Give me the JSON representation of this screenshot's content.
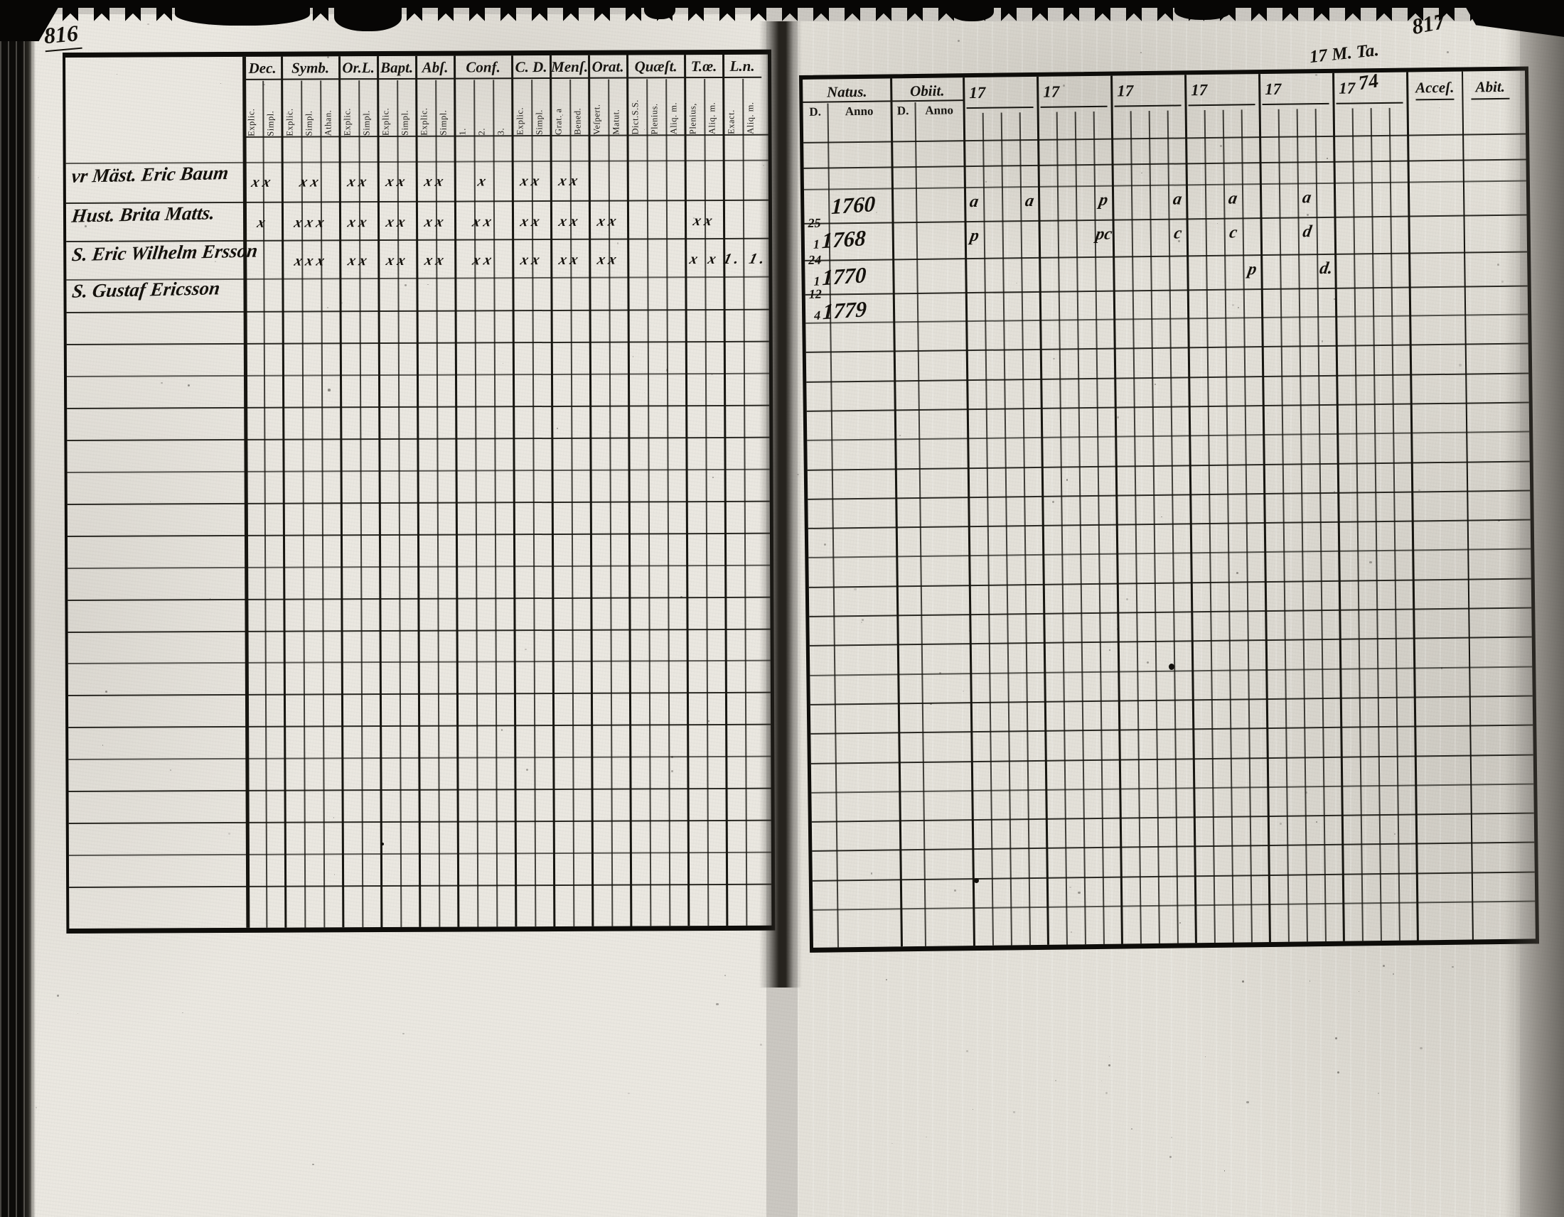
{
  "scan": {
    "left_page_number": "816",
    "right_page_number": "817",
    "top_annotation": "17 M. Ta.",
    "ink_color": "#14110c",
    "paper_color": "#e9e6df"
  },
  "left_page": {
    "columns": [
      {
        "label": "Dec.",
        "subs": [
          "Explic.",
          "Simpl."
        ]
      },
      {
        "label": "Symb.",
        "subs": [
          "Explic.",
          "Simpl.",
          "Athan."
        ]
      },
      {
        "label": "Or.L.",
        "subs": [
          "Explic.",
          "Simpl."
        ]
      },
      {
        "label": "Bapt.",
        "subs": [
          "Explic.",
          "Simpl."
        ]
      },
      {
        "label": "Abſ.",
        "subs": [
          "Explic.",
          "Simpl."
        ]
      },
      {
        "label": "Conf.",
        "subs": [
          "1.",
          "2.",
          "3."
        ]
      },
      {
        "label": "C. D.",
        "subs": [
          "Explic.",
          "Simpl."
        ]
      },
      {
        "label": "Menſ.",
        "subs": [
          "Grat. a",
          "Bened."
        ]
      },
      {
        "label": "Orat.",
        "subs": [
          "Veſpert.",
          "Matut."
        ]
      },
      {
        "label": "Quæſt.",
        "subs": [
          "Dict.S.S.",
          "Plenius.",
          "Aliq. m."
        ]
      },
      {
        "label": "T.œ.",
        "subs": [
          "Plenius,",
          "Aliq. m."
        ]
      },
      {
        "label": "L.n.",
        "subs": [
          "Exact.",
          "Aliq. m."
        ]
      }
    ],
    "entries": [
      {
        "prefix": "vr",
        "name": "Mäst. Eric Baum",
        "marks": [
          "xx",
          "xx",
          "xx",
          "xx",
          "xx",
          "x",
          "xx",
          "xx",
          "",
          "",
          "",
          ""
        ]
      },
      {
        "prefix": "",
        "name": "Hust. Brita Matts.",
        "marks": [
          "x",
          "xxx",
          "xx",
          "xx",
          "xx",
          "xx",
          "xx",
          "xx",
          "xx",
          "",
          "xx",
          ""
        ]
      },
      {
        "prefix": "",
        "name": "S. Eric Wilhelm Ersson",
        "marks": [
          "",
          "xxx",
          "xx",
          "xx",
          "xx",
          "xx",
          "xx",
          "xx",
          "xx",
          "",
          "x x",
          "1. 1."
        ]
      },
      {
        "prefix": "",
        "name": "S. Gustaf Ericsson",
        "marks": [
          "",
          "",
          "",
          "",
          "",
          "",
          "",
          "",
          "",
          "",
          "",
          ""
        ]
      }
    ]
  },
  "right_page": {
    "natus_label": "Natus.",
    "obiit_label": "Obiit.",
    "d_label": "D.",
    "anno_label": "Anno",
    "year_prefix": "17",
    "year_group_count": 6,
    "last_year_hand": "74",
    "acces_label": "Acceſ.",
    "abit_label": "Abit.",
    "entries": [
      {
        "natus_d": "",
        "natus_anno": "1760",
        "obiit_d": "",
        "obiit_anno": "",
        "cells": [
          {
            "c": 0,
            "t": "a"
          },
          {
            "c": 3,
            "t": "a"
          },
          {
            "c": 7,
            "t": "p"
          },
          {
            "c": 11,
            "t": "a"
          },
          {
            "c": 14,
            "t": "a"
          },
          {
            "c": 18,
            "t": "a"
          }
        ]
      },
      {
        "natus_d": "25/1",
        "natus_anno": "1768",
        "obiit_d": "",
        "obiit_anno": "",
        "cells": [
          {
            "c": 0,
            "t": "p"
          },
          {
            "c": 7,
            "t": "pc"
          },
          {
            "c": 11,
            "t": "c"
          },
          {
            "c": 14,
            "t": "c"
          },
          {
            "c": 18,
            "t": "d"
          }
        ]
      },
      {
        "natus_d": "24/1",
        "natus_anno": "1770",
        "obiit_d": "",
        "obiit_anno": "",
        "cells": [
          {
            "c": 15,
            "t": "p"
          },
          {
            "c": 19,
            "t": "d."
          }
        ]
      },
      {
        "natus_d": "12/4",
        "natus_anno": "1779",
        "obiit_d": "",
        "obiit_anno": "",
        "cells": []
      }
    ]
  }
}
